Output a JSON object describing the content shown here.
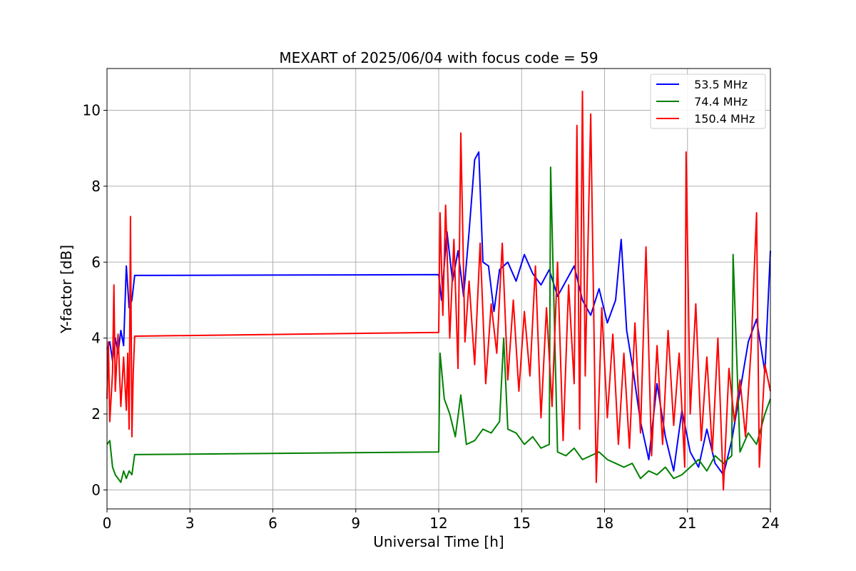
{
  "chart_data": {
    "type": "line",
    "title": "MEXART of 2025/06/04 with focus code = 59",
    "xlabel": "Universal Time [h]",
    "ylabel": "Y-factor [dB]",
    "xlim": [
      0,
      24
    ],
    "ylim": [
      -0.5,
      11.1
    ],
    "xticks": [
      0,
      3,
      6,
      9,
      12,
      15,
      18,
      21,
      24
    ],
    "yticks": [
      0,
      2,
      4,
      6,
      8,
      10
    ],
    "grid": true,
    "legend_position": "upper right",
    "series": [
      {
        "name": " 53.5 MHz",
        "color": "#0000ff",
        "x": [
          0,
          0.1,
          0.2,
          0.3,
          0.4,
          0.5,
          0.6,
          0.7,
          0.8,
          0.9,
          1.0,
          12.0,
          12.1,
          12.3,
          12.5,
          12.7,
          12.9,
          13.1,
          13.3,
          13.45,
          13.6,
          13.8,
          14.0,
          14.2,
          14.5,
          14.8,
          15.1,
          15.4,
          15.7,
          16.0,
          16.3,
          16.6,
          16.9,
          17.2,
          17.5,
          17.8,
          18.1,
          18.4,
          18.6,
          18.8,
          19.0,
          19.3,
          19.6,
          19.9,
          20.2,
          20.5,
          20.8,
          21.1,
          21.4,
          21.7,
          22.0,
          22.3,
          22.6,
          22.9,
          23.2,
          23.5,
          23.8,
          24.0
        ],
        "y": [
          3.7,
          3.9,
          3.4,
          4.0,
          3.6,
          4.2,
          3.8,
          5.9,
          4.8,
          5.0,
          5.65,
          5.67,
          5.0,
          6.8,
          5.5,
          6.3,
          5.1,
          6.8,
          8.7,
          8.9,
          6.0,
          5.9,
          4.7,
          5.8,
          6.0,
          5.5,
          6.2,
          5.7,
          5.4,
          5.8,
          5.1,
          5.5,
          5.9,
          5.0,
          4.6,
          5.3,
          4.4,
          5.0,
          6.6,
          4.2,
          3.3,
          1.8,
          0.8,
          2.8,
          1.4,
          0.5,
          2.1,
          1.0,
          0.6,
          1.6,
          0.7,
          0.4,
          1.3,
          2.6,
          3.9,
          4.5,
          3.1,
          6.3
        ]
      },
      {
        "name": " 74.4 MHz",
        "color": "#008000",
        "x": [
          0,
          0.1,
          0.2,
          0.3,
          0.4,
          0.5,
          0.6,
          0.7,
          0.8,
          0.9,
          1.0,
          12.0,
          12.05,
          12.2,
          12.4,
          12.6,
          12.8,
          13.0,
          13.3,
          13.6,
          13.9,
          14.2,
          14.35,
          14.5,
          14.8,
          15.1,
          15.4,
          15.7,
          16.0,
          16.05,
          16.3,
          16.6,
          16.9,
          17.2,
          17.5,
          17.8,
          18.1,
          18.4,
          18.7,
          19.0,
          19.3,
          19.6,
          19.9,
          20.2,
          20.5,
          20.8,
          21.1,
          21.4,
          21.7,
          22.0,
          22.3,
          22.6,
          22.65,
          22.9,
          23.2,
          23.5,
          23.8,
          24.0
        ],
        "y": [
          1.2,
          1.3,
          0.6,
          0.4,
          0.3,
          0.2,
          0.5,
          0.3,
          0.5,
          0.4,
          0.93,
          1.0,
          3.6,
          2.4,
          2.0,
          1.4,
          2.5,
          1.2,
          1.3,
          1.6,
          1.5,
          1.8,
          4.0,
          1.6,
          1.5,
          1.2,
          1.4,
          1.1,
          1.2,
          8.5,
          1.0,
          0.9,
          1.1,
          0.8,
          0.9,
          1.0,
          0.8,
          0.7,
          0.6,
          0.7,
          0.3,
          0.5,
          0.4,
          0.6,
          0.3,
          0.4,
          0.6,
          0.8,
          0.5,
          0.9,
          0.7,
          0.9,
          6.2,
          1.0,
          1.5,
          1.2,
          2.0,
          2.4
        ]
      },
      {
        "name": " 150.4 MHz",
        "color": "#ff0000",
        "x": [
          0,
          0.05,
          0.1,
          0.2,
          0.25,
          0.3,
          0.4,
          0.5,
          0.6,
          0.7,
          0.75,
          0.8,
          0.85,
          0.9,
          0.95,
          1.0,
          12.0,
          12.05,
          12.15,
          12.25,
          12.4,
          12.55,
          12.7,
          12.8,
          12.95,
          13.1,
          13.3,
          13.5,
          13.7,
          13.9,
          14.1,
          14.3,
          14.5,
          14.7,
          14.9,
          15.1,
          15.3,
          15.5,
          15.7,
          15.9,
          16.1,
          16.3,
          16.5,
          16.7,
          16.9,
          17.0,
          17.1,
          17.2,
          17.3,
          17.5,
          17.7,
          17.9,
          18.1,
          18.3,
          18.5,
          18.7,
          18.9,
          19.1,
          19.3,
          19.5,
          19.7,
          19.9,
          20.1,
          20.3,
          20.5,
          20.7,
          20.9,
          20.95,
          21.1,
          21.3,
          21.5,
          21.7,
          21.9,
          22.1,
          22.3,
          22.5,
          22.7,
          22.9,
          23.1,
          23.3,
          23.5,
          23.6,
          23.8,
          24.0
        ],
        "y": [
          2.4,
          3.9,
          1.8,
          3.1,
          5.4,
          2.6,
          4.1,
          2.2,
          3.5,
          2.1,
          3.6,
          1.6,
          7.2,
          1.4,
          3.1,
          4.05,
          4.15,
          7.3,
          4.6,
          7.5,
          4.0,
          6.6,
          3.2,
          9.4,
          3.9,
          5.5,
          3.3,
          6.5,
          2.8,
          4.9,
          3.6,
          6.5,
          2.9,
          5.0,
          2.6,
          4.7,
          3.0,
          5.9,
          1.9,
          4.8,
          2.2,
          6.0,
          1.3,
          5.4,
          2.8,
          9.6,
          1.6,
          10.5,
          3.0,
          9.9,
          0.2,
          4.8,
          1.9,
          4.1,
          1.2,
          3.6,
          1.1,
          4.4,
          1.5,
          6.4,
          0.9,
          3.8,
          1.2,
          4.2,
          1.7,
          3.6,
          0.6,
          8.9,
          2.0,
          4.9,
          1.3,
          3.5,
          1.0,
          4.0,
          0.0,
          3.2,
          1.8,
          2.9,
          1.4,
          3.7,
          7.3,
          0.6,
          3.3,
          2.6
        ]
      }
    ]
  }
}
